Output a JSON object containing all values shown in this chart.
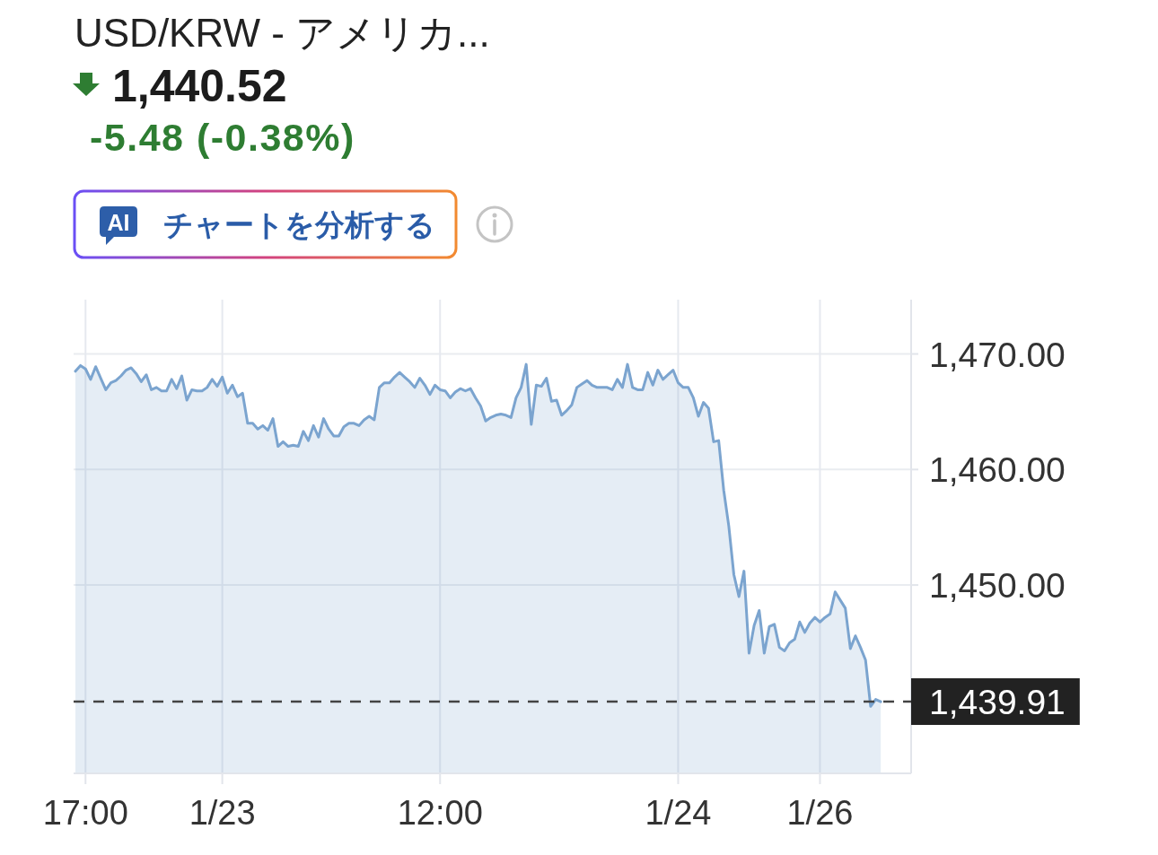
{
  "chart_data": {
    "type": "area",
    "title": "USD/KRW - アメリカ...",
    "subtitle": "1,440.52",
    "annotations": [
      "-5.48 (-0.38%)",
      "AI",
      "チャートを分析する"
    ],
    "categories": [
      null,
      null,
      "17:00",
      null,
      null,
      null,
      null,
      null,
      null,
      null,
      null,
      null,
      null,
      null,
      null,
      null,
      null,
      null,
      null,
      null,
      null,
      null,
      null,
      null,
      null,
      null,
      null,
      null,
      null,
      "1/23",
      null,
      null,
      null,
      null,
      null,
      null,
      null,
      null,
      null,
      null,
      null,
      null,
      null,
      null,
      null,
      null,
      null,
      null,
      null,
      null,
      null,
      null,
      null,
      null,
      null,
      null,
      null,
      null,
      null,
      null,
      null,
      null,
      null,
      null,
      null,
      null,
      null,
      null,
      null,
      null,
      null,
      null,
      "12:00",
      null,
      null,
      null,
      null,
      null,
      null,
      null,
      null,
      null,
      null,
      null,
      null,
      null,
      null,
      null,
      null,
      null,
      null,
      null,
      null,
      null,
      null,
      null,
      null,
      null,
      null,
      null,
      null,
      null,
      null,
      null,
      null,
      null,
      null,
      null,
      null,
      null,
      null,
      null,
      null,
      null,
      null,
      null,
      null,
      null,
      null,
      "1/24",
      null,
      null,
      null,
      null,
      null,
      null,
      null,
      null,
      null,
      null,
      null,
      null,
      null,
      null,
      null,
      null,
      null,
      null,
      null,
      null,
      null,
      null,
      null,
      null,
      null,
      null,
      null,
      "1/26",
      null,
      null,
      null,
      null,
      null,
      null,
      null,
      null,
      null,
      null,
      null,
      null,
      null,
      null,
      null,
      null,
      null,
      null
    ],
    "series": [
      {
        "color": "#7ba4cf",
        "values": [
          1468.5,
          1469.0,
          1468.7,
          1467.8,
          1468.9,
          1467.9,
          1466.9,
          1467.5,
          1467.7,
          1468.1,
          1468.6,
          1468.8,
          1468.3,
          1467.6,
          1468.2,
          1466.9,
          1467.1,
          1466.8,
          1466.8,
          1467.8,
          1467.0,
          1468.1,
          1466.0,
          1466.9,
          1466.8,
          1466.8,
          1467.1,
          1467.8,
          1467.2,
          1468.0,
          1466.6,
          1467.3,
          1466.3,
          1466.6,
          1464.0,
          1464.0,
          1463.5,
          1463.8,
          1463.4,
          1464.4,
          1462.0,
          1462.4,
          1462.0,
          1462.1,
          1462.0,
          1463.3,
          1462.5,
          1463.8,
          1462.8,
          1464.4,
          1463.5,
          1462.9,
          1462.9,
          1463.7,
          1464.0,
          1464.0,
          1463.8,
          1464.3,
          1464.6,
          1464.3,
          1467.1,
          1467.5,
          1467.5,
          1468.0,
          1468.4,
          1468.0,
          1467.6,
          1467.1,
          1467.9,
          1467.3,
          1466.5,
          1467.3,
          1466.9,
          1466.8,
          1466.2,
          1466.7,
          1467.0,
          1466.8,
          1467.0,
          1466.2,
          1465.5,
          1464.2,
          1464.5,
          1464.7,
          1464.8,
          1464.7,
          1464.5,
          1466.2,
          1467.1,
          1469.1,
          1463.9,
          1467.3,
          1467.2,
          1467.9,
          1465.9,
          1466.0,
          1464.7,
          1465.1,
          1465.6,
          1467.1,
          1467.4,
          1467.7,
          1467.3,
          1467.1,
          1467.1,
          1467.1,
          1466.9,
          1467.8,
          1467.1,
          1469.1,
          1467.1,
          1466.9,
          1466.9,
          1468.4,
          1467.3,
          1468.6,
          1467.8,
          1468.2,
          1468.6,
          1467.5,
          1467.1,
          1467.1,
          1466.2,
          1464.6,
          1465.8,
          1465.3,
          1462.4,
          1462.5,
          1458.2,
          1455.1,
          1450.9,
          1449.0,
          1451.2,
          1444.1,
          1446.5,
          1447.8,
          1444.1,
          1446.4,
          1446.6,
          1444.6,
          1444.3,
          1445.0,
          1445.3,
          1446.8,
          1445.9,
          1446.7,
          1447.2,
          1446.8,
          1447.2,
          1447.5,
          1449.4,
          1448.7,
          1448.0,
          1444.5,
          1445.6,
          1444.6,
          1443.5,
          1439.5,
          1440.1,
          1439.9,
          null,
          null,
          null,
          null,
          null,
          null
        ]
      }
    ],
    "ylim": [
      1433.7,
      1474.7
    ],
    "yticks": [
      {
        "value": 1450,
        "label": "1,450.00"
      },
      {
        "value": 1460,
        "label": "1,460.00"
      },
      {
        "value": 1470,
        "label": "1,470.00"
      }
    ],
    "grid": true,
    "ref_lines": [
      {
        "axis": "y",
        "value": 1439.91,
        "label": "1,439.91",
        "color": "#444444",
        "line_style": "dashed"
      }
    ]
  }
}
